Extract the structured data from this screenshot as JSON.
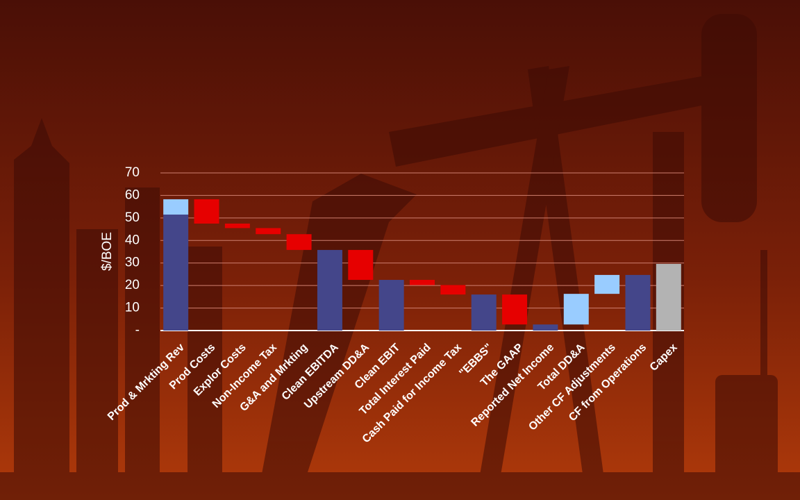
{
  "chart_data": {
    "type": "waterfall",
    "y_label": "$/BOE",
    "categories": [
      "Prod & Mrkting Rev",
      "Prod Costs",
      "Explor Costs",
      "Non-Income Tax",
      "G&A and Mrkting",
      "Clean EBITDA",
      "Upstream DD&A",
      "Clean EBIT",
      "Total Interest Paid",
      "Cash Paid for Income Tax",
      "\"EBBS\"",
      "The GAAP",
      "Reported Net Income",
      "Total DD&A",
      "Other CF Adjustments",
      "CF from Operations",
      "Capex"
    ],
    "series": [
      {
        "role": "total",
        "color": "#44468a",
        "values": [
          51.5,
          null,
          null,
          null,
          null,
          35.8,
          null,
          22.5,
          null,
          null,
          16.0,
          null,
          2.7,
          null,
          null,
          24.7,
          null
        ]
      },
      {
        "role": "step",
        "color": "#99ccff",
        "values": [
          6.8,
          null,
          null,
          null,
          null,
          null,
          null,
          null,
          null,
          null,
          null,
          null,
          null,
          13.6,
          8.4,
          null,
          null
        ]
      },
      {
        "role": "step",
        "color": "#e60000",
        "values": [
          null,
          -10.8,
          -2.0,
          -2.7,
          -7.0,
          null,
          -13.3,
          null,
          -2.3,
          -4.2,
          null,
          -13.3,
          null,
          null,
          null,
          null,
          null
        ]
      },
      {
        "role": "total",
        "color": "#b3b3b3",
        "values": [
          null,
          null,
          null,
          null,
          null,
          null,
          null,
          null,
          null,
          null,
          null,
          null,
          null,
          null,
          null,
          null,
          29.6
        ]
      }
    ],
    "ylim": [
      0,
      70
    ],
    "yticks": [
      {
        "value": 0,
        "label": "-"
      },
      10,
      20,
      30,
      40,
      50,
      60,
      70
    ],
    "grid": true
  }
}
